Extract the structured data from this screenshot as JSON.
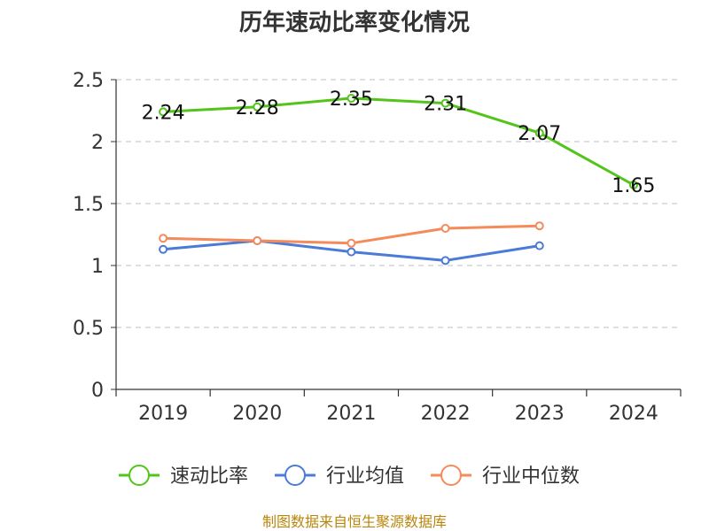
{
  "chart_data": {
    "type": "line",
    "title": "历年速动比率变化情况",
    "categories": [
      "2019",
      "2020",
      "2021",
      "2022",
      "2023",
      "2024"
    ],
    "ylim": [
      0,
      2.5
    ],
    "yticks": [
      "0",
      "0.5",
      "1",
      "1.5",
      "2",
      "2.5"
    ],
    "grid": true,
    "legend_position": "bottom",
    "series": [
      {
        "name": "速动比率",
        "color": "#52c41a",
        "values": [
          2.24,
          2.28,
          2.35,
          2.31,
          2.07,
          1.65
        ],
        "labels": [
          "2.24",
          "2.28",
          "2.35",
          "2.31",
          "2.07",
          "1.65"
        ]
      },
      {
        "name": "行业均值",
        "color": "#4a7bd6",
        "values": [
          1.13,
          1.2,
          1.11,
          1.04,
          1.16,
          null
        ]
      },
      {
        "name": "行业中位数",
        "color": "#f58a5a",
        "values": [
          1.22,
          1.2,
          1.18,
          1.3,
          1.32,
          null
        ]
      }
    ],
    "source": "制图数据来自恒生聚源数据库"
  }
}
